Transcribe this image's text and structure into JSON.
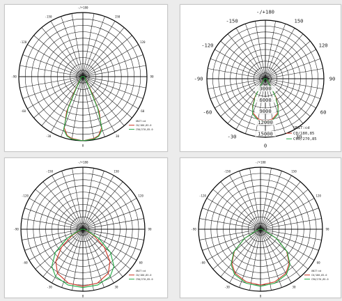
{
  "chart_data": [
    {
      "type": "polar",
      "title": "",
      "angle_labels": {
        "top": "-/+180",
        "ul": "-150",
        "ur": "150",
        "ul2": "-120",
        "ur2": "120",
        "left": "-90",
        "right": "90",
        "ll2": "-60",
        "lr2": "60",
        "ll": "-30",
        "lr": "30",
        "bottom": "0"
      },
      "radial_labels": [],
      "legend_title": "UNIT:cd",
      "series": [
        {
          "name": "C0/180,85.0",
          "color": "#cc3322",
          "values": [
            [
              0,
              1.0
            ],
            [
              10,
              0.98
            ],
            [
              15,
              0.95
            ],
            [
              20,
              0.85
            ],
            [
              25,
              0.6
            ],
            [
              30,
              0.25
            ],
            [
              40,
              0.08
            ],
            [
              60,
              0.04
            ],
            [
              90,
              0.02
            ]
          ]
        },
        {
          "name": "C90/270,85.0",
          "color": "#22aa44",
          "values": [
            [
              0,
              1.0
            ],
            [
              10,
              0.99
            ],
            [
              15,
              0.96
            ],
            [
              20,
              0.88
            ],
            [
              25,
              0.55
            ],
            [
              30,
              0.2
            ],
            [
              40,
              0.07
            ],
            [
              60,
              0.04
            ],
            [
              90,
              0.02
            ]
          ]
        }
      ]
    },
    {
      "type": "polar",
      "title": "",
      "angle_labels": {
        "top": "-/+180",
        "ul": "-150",
        "ur": "150",
        "ul2": "-120",
        "ur2": "120",
        "left": "-90",
        "right": "90",
        "ll2": "-60",
        "lr2": "60",
        "ll": "-30",
        "lr": "30",
        "bottom": "0"
      },
      "radial_labels": [
        "3000",
        "6000",
        "9000",
        "12000",
        "15000"
      ],
      "legend_title": "UNIT:cd",
      "series": [
        {
          "name": "C0/180,85",
          "color": "#cc3322",
          "values": [
            [
              0,
              0.72
            ],
            [
              10,
              0.7
            ],
            [
              20,
              0.62
            ],
            [
              25,
              0.52
            ],
            [
              30,
              0.35
            ],
            [
              35,
              0.15
            ],
            [
              45,
              0.06
            ],
            [
              60,
              0.03
            ],
            [
              90,
              0.02
            ]
          ]
        },
        {
          "name": "C90/270,85",
          "color": "#22aa44",
          "values": [
            [
              0,
              0.74
            ],
            [
              10,
              0.72
            ],
            [
              20,
              0.64
            ],
            [
              25,
              0.5
            ],
            [
              30,
              0.32
            ],
            [
              35,
              0.14
            ],
            [
              45,
              0.05
            ],
            [
              60,
              0.03
            ],
            [
              90,
              0.02
            ]
          ]
        }
      ]
    },
    {
      "type": "polar",
      "title": "",
      "angle_labels": {
        "top": "-/+180",
        "ul": "-150",
        "ur": "150",
        "ul2": "-120",
        "ur2": "120",
        "left": "-90",
        "right": "90",
        "ll2": "-60",
        "lr2": "60",
        "ll": "-30",
        "lr": "30",
        "bottom": "0"
      },
      "radial_labels": [],
      "legend_title": "UNIT:cd",
      "series": [
        {
          "name": "C0/180,85.0",
          "color": "#cc3322",
          "values": [
            [
              0,
              0.92
            ],
            [
              15,
              0.9
            ],
            [
              30,
              0.82
            ],
            [
              40,
              0.68
            ],
            [
              50,
              0.45
            ],
            [
              60,
              0.2
            ],
            [
              70,
              0.06
            ],
            [
              90,
              0.02
            ]
          ]
        },
        {
          "name": "C90/270,85.0",
          "color": "#22aa44",
          "values": [
            [
              0,
              0.94
            ],
            [
              15,
              0.93
            ],
            [
              30,
              0.88
            ],
            [
              40,
              0.78
            ],
            [
              50,
              0.58
            ],
            [
              60,
              0.3
            ],
            [
              70,
              0.08
            ],
            [
              90,
              0.02
            ]
          ]
        }
      ]
    },
    {
      "type": "polar",
      "title": "",
      "angle_labels": {
        "top": "-/+180",
        "ul": "-150",
        "ur": "150",
        "ul2": "-120",
        "ur2": "120",
        "left": "-90",
        "right": "90",
        "ll2": "-60",
        "lr2": "60",
        "ll": "-30",
        "lr": "30",
        "bottom": "0"
      },
      "radial_labels": [],
      "legend_title": "UNIT:cd",
      "series": [
        {
          "name": "C0/180,85.0",
          "color": "#cc3322",
          "values": [
            [
              0,
              0.9
            ],
            [
              15,
              0.88
            ],
            [
              30,
              0.82
            ],
            [
              40,
              0.72
            ],
            [
              50,
              0.55
            ],
            [
              60,
              0.3
            ],
            [
              70,
              0.08
            ],
            [
              90,
              0.02
            ]
          ]
        },
        {
          "name": "C90/270,85.0",
          "color": "#22aa44",
          "values": [
            [
              0,
              0.92
            ],
            [
              15,
              0.9
            ],
            [
              30,
              0.84
            ],
            [
              40,
              0.74
            ],
            [
              50,
              0.56
            ],
            [
              60,
              0.3
            ],
            [
              70,
              0.08
            ],
            [
              90,
              0.02
            ]
          ]
        }
      ]
    }
  ]
}
